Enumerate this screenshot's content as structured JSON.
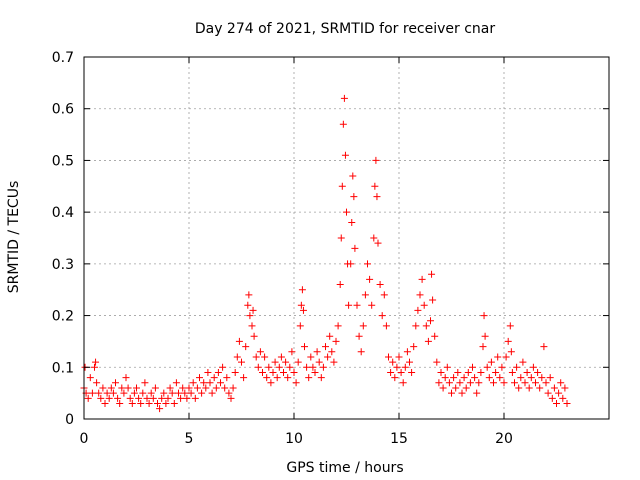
{
  "chart_data": {
    "type": "scatter",
    "title": "Day 274 of 2021, SRMTID for receiver cnar",
    "xlabel": "GPS time / hours",
    "ylabel": "SRMTID / TECUs",
    "xlim": [
      0,
      25
    ],
    "ylim": [
      0,
      0.7
    ],
    "x_ticks": [
      0,
      5,
      10,
      15,
      20
    ],
    "y_ticks": [
      0,
      0.1,
      0.2,
      0.3,
      0.4,
      0.5,
      0.6,
      0.7
    ],
    "grid": true,
    "marker": "+",
    "marker_color": "#ff0000",
    "series": [
      {
        "name": "SRMTID",
        "points": [
          [
            0.0,
            0.06
          ],
          [
            0.05,
            0.1
          ],
          [
            0.1,
            0.05
          ],
          [
            0.2,
            0.04
          ],
          [
            0.3,
            0.08
          ],
          [
            0.4,
            0.05
          ],
          [
            0.5,
            0.1
          ],
          [
            0.55,
            0.11
          ],
          [
            0.6,
            0.07
          ],
          [
            0.7,
            0.05
          ],
          [
            0.8,
            0.04
          ],
          [
            0.9,
            0.06
          ],
          [
            1.0,
            0.03
          ],
          [
            1.1,
            0.05
          ],
          [
            1.2,
            0.04
          ],
          [
            1.3,
            0.06
          ],
          [
            1.4,
            0.05
          ],
          [
            1.5,
            0.07
          ],
          [
            1.6,
            0.04
          ],
          [
            1.7,
            0.03
          ],
          [
            1.8,
            0.06
          ],
          [
            1.9,
            0.05
          ],
          [
            2.0,
            0.08
          ],
          [
            2.1,
            0.06
          ],
          [
            2.2,
            0.04
          ],
          [
            2.3,
            0.03
          ],
          [
            2.4,
            0.05
          ],
          [
            2.5,
            0.06
          ],
          [
            2.6,
            0.04
          ],
          [
            2.7,
            0.03
          ],
          [
            2.8,
            0.05
          ],
          [
            2.9,
            0.07
          ],
          [
            3.0,
            0.04
          ],
          [
            3.1,
            0.03
          ],
          [
            3.2,
            0.05
          ],
          [
            3.3,
            0.04
          ],
          [
            3.4,
            0.06
          ],
          [
            3.5,
            0.03
          ],
          [
            3.6,
            0.02
          ],
          [
            3.7,
            0.04
          ],
          [
            3.8,
            0.05
          ],
          [
            3.9,
            0.03
          ],
          [
            4.0,
            0.04
          ],
          [
            4.1,
            0.06
          ],
          [
            4.2,
            0.05
          ],
          [
            4.3,
            0.03
          ],
          [
            4.4,
            0.07
          ],
          [
            4.5,
            0.05
          ],
          [
            4.6,
            0.04
          ],
          [
            4.7,
            0.06
          ],
          [
            4.8,
            0.05
          ],
          [
            4.9,
            0.04
          ],
          [
            5.0,
            0.06
          ],
          [
            5.1,
            0.05
          ],
          [
            5.2,
            0.07
          ],
          [
            5.3,
            0.04
          ],
          [
            5.4,
            0.06
          ],
          [
            5.5,
            0.08
          ],
          [
            5.6,
            0.05
          ],
          [
            5.7,
            0.07
          ],
          [
            5.8,
            0.06
          ],
          [
            5.9,
            0.09
          ],
          [
            6.0,
            0.07
          ],
          [
            6.1,
            0.05
          ],
          [
            6.2,
            0.08
          ],
          [
            6.3,
            0.06
          ],
          [
            6.4,
            0.09
          ],
          [
            6.5,
            0.07
          ],
          [
            6.6,
            0.1
          ],
          [
            6.7,
            0.06
          ],
          [
            6.8,
            0.08
          ],
          [
            6.9,
            0.05
          ],
          [
            7.0,
            0.04
          ],
          [
            7.1,
            0.06
          ],
          [
            7.2,
            0.09
          ],
          [
            7.3,
            0.12
          ],
          [
            7.4,
            0.15
          ],
          [
            7.5,
            0.11
          ],
          [
            7.6,
            0.08
          ],
          [
            7.7,
            0.14
          ],
          [
            7.8,
            0.22
          ],
          [
            7.85,
            0.24
          ],
          [
            7.9,
            0.2
          ],
          [
            8.0,
            0.18
          ],
          [
            8.05,
            0.21
          ],
          [
            8.1,
            0.16
          ],
          [
            8.2,
            0.12
          ],
          [
            8.3,
            0.1
          ],
          [
            8.4,
            0.13
          ],
          [
            8.5,
            0.09
          ],
          [
            8.6,
            0.12
          ],
          [
            8.7,
            0.08
          ],
          [
            8.8,
            0.1
          ],
          [
            8.9,
            0.07
          ],
          [
            9.0,
            0.09
          ],
          [
            9.1,
            0.11
          ],
          [
            9.2,
            0.08
          ],
          [
            9.3,
            0.1
          ],
          [
            9.4,
            0.12
          ],
          [
            9.5,
            0.09
          ],
          [
            9.6,
            0.11
          ],
          [
            9.7,
            0.08
          ],
          [
            9.8,
            0.1
          ],
          [
            9.9,
            0.13
          ],
          [
            10.0,
            0.09
          ],
          [
            10.1,
            0.07
          ],
          [
            10.2,
            0.11
          ],
          [
            10.3,
            0.18
          ],
          [
            10.35,
            0.22
          ],
          [
            10.4,
            0.25
          ],
          [
            10.45,
            0.21
          ],
          [
            10.5,
            0.14
          ],
          [
            10.6,
            0.1
          ],
          [
            10.7,
            0.08
          ],
          [
            10.8,
            0.12
          ],
          [
            10.9,
            0.1
          ],
          [
            11.0,
            0.09
          ],
          [
            11.1,
            0.13
          ],
          [
            11.2,
            0.11
          ],
          [
            11.3,
            0.08
          ],
          [
            11.4,
            0.1
          ],
          [
            11.5,
            0.14
          ],
          [
            11.6,
            0.12
          ],
          [
            11.7,
            0.16
          ],
          [
            11.8,
            0.13
          ],
          [
            11.9,
            0.11
          ],
          [
            12.0,
            0.15
          ],
          [
            12.1,
            0.18
          ],
          [
            12.2,
            0.26
          ],
          [
            12.25,
            0.35
          ],
          [
            12.3,
            0.45
          ],
          [
            12.35,
            0.57
          ],
          [
            12.4,
            0.62
          ],
          [
            12.45,
            0.51
          ],
          [
            12.5,
            0.4
          ],
          [
            12.55,
            0.3
          ],
          [
            12.6,
            0.22
          ],
          [
            12.7,
            0.3
          ],
          [
            12.75,
            0.38
          ],
          [
            12.8,
            0.47
          ],
          [
            12.85,
            0.43
          ],
          [
            12.9,
            0.33
          ],
          [
            13.0,
            0.22
          ],
          [
            13.1,
            0.16
          ],
          [
            13.2,
            0.13
          ],
          [
            13.3,
            0.18
          ],
          [
            13.4,
            0.24
          ],
          [
            13.5,
            0.3
          ],
          [
            13.6,
            0.27
          ],
          [
            13.7,
            0.22
          ],
          [
            13.8,
            0.35
          ],
          [
            13.85,
            0.45
          ],
          [
            13.9,
            0.5
          ],
          [
            13.95,
            0.43
          ],
          [
            14.0,
            0.34
          ],
          [
            14.1,
            0.26
          ],
          [
            14.2,
            0.2
          ],
          [
            14.3,
            0.24
          ],
          [
            14.4,
            0.18
          ],
          [
            14.5,
            0.12
          ],
          [
            14.6,
            0.09
          ],
          [
            14.7,
            0.11
          ],
          [
            14.8,
            0.08
          ],
          [
            14.9,
            0.1
          ],
          [
            15.0,
            0.12
          ],
          [
            15.1,
            0.09
          ],
          [
            15.2,
            0.07
          ],
          [
            15.3,
            0.1
          ],
          [
            15.4,
            0.13
          ],
          [
            15.5,
            0.11
          ],
          [
            15.6,
            0.09
          ],
          [
            15.7,
            0.14
          ],
          [
            15.8,
            0.18
          ],
          [
            15.9,
            0.21
          ],
          [
            16.0,
            0.24
          ],
          [
            16.1,
            0.27
          ],
          [
            16.2,
            0.22
          ],
          [
            16.3,
            0.18
          ],
          [
            16.4,
            0.15
          ],
          [
            16.5,
            0.19
          ],
          [
            16.55,
            0.28
          ],
          [
            16.6,
            0.23
          ],
          [
            16.7,
            0.16
          ],
          [
            16.8,
            0.11
          ],
          [
            16.9,
            0.07
          ],
          [
            17.0,
            0.09
          ],
          [
            17.1,
            0.06
          ],
          [
            17.2,
            0.08
          ],
          [
            17.3,
            0.1
          ],
          [
            17.4,
            0.07
          ],
          [
            17.5,
            0.05
          ],
          [
            17.6,
            0.08
          ],
          [
            17.7,
            0.06
          ],
          [
            17.8,
            0.09
          ],
          [
            17.9,
            0.07
          ],
          [
            18.0,
            0.05
          ],
          [
            18.1,
            0.08
          ],
          [
            18.2,
            0.06
          ],
          [
            18.3,
            0.09
          ],
          [
            18.4,
            0.07
          ],
          [
            18.5,
            0.1
          ],
          [
            18.6,
            0.08
          ],
          [
            18.7,
            0.05
          ],
          [
            18.8,
            0.07
          ],
          [
            18.9,
            0.09
          ],
          [
            19.0,
            0.14
          ],
          [
            19.05,
            0.2
          ],
          [
            19.1,
            0.16
          ],
          [
            19.2,
            0.1
          ],
          [
            19.3,
            0.08
          ],
          [
            19.4,
            0.11
          ],
          [
            19.5,
            0.07
          ],
          [
            19.6,
            0.09
          ],
          [
            19.7,
            0.12
          ],
          [
            19.8,
            0.08
          ],
          [
            19.9,
            0.1
          ],
          [
            20.0,
            0.07
          ],
          [
            20.1,
            0.12
          ],
          [
            20.2,
            0.15
          ],
          [
            20.3,
            0.18
          ],
          [
            20.35,
            0.13
          ],
          [
            20.4,
            0.09
          ],
          [
            20.5,
            0.07
          ],
          [
            20.6,
            0.1
          ],
          [
            20.7,
            0.06
          ],
          [
            20.8,
            0.08
          ],
          [
            20.9,
            0.11
          ],
          [
            21.0,
            0.07
          ],
          [
            21.1,
            0.09
          ],
          [
            21.2,
            0.06
          ],
          [
            21.3,
            0.08
          ],
          [
            21.4,
            0.1
          ],
          [
            21.5,
            0.07
          ],
          [
            21.6,
            0.09
          ],
          [
            21.7,
            0.06
          ],
          [
            21.8,
            0.08
          ],
          [
            21.9,
            0.14
          ],
          [
            22.0,
            0.07
          ],
          [
            22.1,
            0.05
          ],
          [
            22.2,
            0.08
          ],
          [
            22.3,
            0.04
          ],
          [
            22.4,
            0.06
          ],
          [
            22.5,
            0.03
          ],
          [
            22.6,
            0.05
          ],
          [
            22.7,
            0.07
          ],
          [
            22.8,
            0.04
          ],
          [
            22.9,
            0.06
          ],
          [
            23.0,
            0.03
          ]
        ]
      }
    ]
  }
}
